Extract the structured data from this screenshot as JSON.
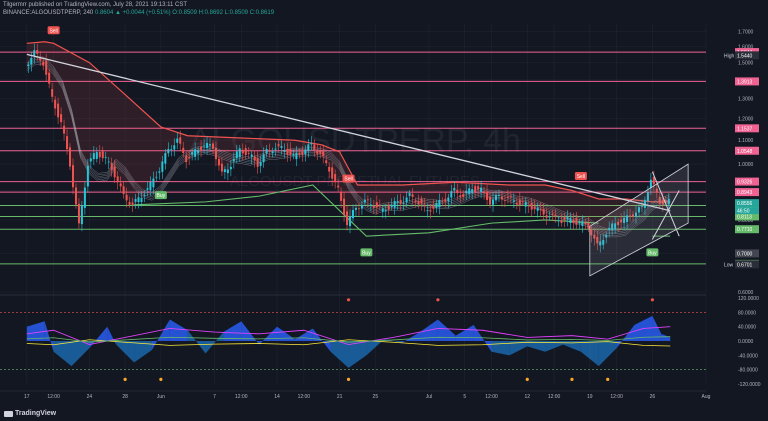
{
  "header": {
    "line1": "Tilgermrr published on TradingView.com, July 28, 2021 19:13:11 CST",
    "symbol": "BINANCE:ALGOUSDTPERP, 240",
    "change": "0.8604 ▲ +0.0044 (+0.51%)",
    "ohlc": "O:0.8509 H:0.8692 L:0.8509 C:0.8619"
  },
  "watermark": {
    "symbol": "ALGOUSDTPERP, 4h",
    "description": "ALGOUSDT PERPETUAL FUTURES"
  },
  "brand": "TradingView",
  "colors": {
    "background": "#131722",
    "up": "#26c6da",
    "down": "#ef5350",
    "resistance": "#f06292",
    "support": "#66bb6a",
    "trendline": "#d1d4dc",
    "supertrend": "#ef5350",
    "ribbon": "#b2b5be"
  },
  "chart_data": [
    {
      "type": "line",
      "panel": "price",
      "y_scale": "log",
      "ylim": [
        0.6,
        1.75
      ],
      "y_ticks": [
        "1.7000",
        "1.6000",
        "1.5000",
        "1.4000",
        "1.3000",
        "1.2000",
        "1.1000",
        "1.0000",
        "0.9000",
        "0.8000",
        "0.7000",
        "0.6000"
      ],
      "x_ticks": [
        "17",
        "12:00",
        "24",
        "28",
        "Jun",
        "7",
        "12:00",
        "14",
        "12:00",
        "21",
        "25",
        "Jul",
        "5",
        "12:00",
        "12",
        "12:00",
        "19",
        "12:00",
        "26",
        "Aug"
      ],
      "price_path": [
        {
          "d": "2021-05-17",
          "v": 1.48
        },
        {
          "d": "2021-05-18",
          "v": 1.56
        },
        {
          "d": "2021-05-19",
          "v": 1.5
        },
        {
          "d": "2021-05-20",
          "v": 1.3
        },
        {
          "d": "2021-05-21",
          "v": 1.18
        },
        {
          "d": "2021-05-22",
          "v": 1.0
        },
        {
          "d": "2021-05-23",
          "v": 0.78
        },
        {
          "d": "2021-05-24",
          "v": 1.0
        },
        {
          "d": "2021-05-25",
          "v": 1.05
        },
        {
          "d": "2021-05-26",
          "v": 1.02
        },
        {
          "d": "2021-05-27",
          "v": 0.96
        },
        {
          "d": "2021-05-28",
          "v": 0.88
        },
        {
          "d": "2021-05-29",
          "v": 0.85
        },
        {
          "d": "2021-05-30",
          "v": 0.88
        },
        {
          "d": "2021-05-31",
          "v": 0.92
        },
        {
          "d": "2021-06-01",
          "v": 0.98
        },
        {
          "d": "2021-06-02",
          "v": 1.06
        },
        {
          "d": "2021-06-03",
          "v": 1.1
        },
        {
          "d": "2021-06-04",
          "v": 1.02
        },
        {
          "d": "2021-06-05",
          "v": 1.05
        },
        {
          "d": "2021-06-06",
          "v": 1.08
        },
        {
          "d": "2021-06-07",
          "v": 1.07
        },
        {
          "d": "2021-06-08",
          "v": 0.96
        },
        {
          "d": "2021-06-09",
          "v": 1.0
        },
        {
          "d": "2021-06-10",
          "v": 1.06
        },
        {
          "d": "2021-06-11",
          "v": 1.04
        },
        {
          "d": "2021-06-12",
          "v": 1.0
        },
        {
          "d": "2021-06-13",
          "v": 1.05
        },
        {
          "d": "2021-06-14",
          "v": 1.07
        },
        {
          "d": "2021-06-15",
          "v": 1.06
        },
        {
          "d": "2021-06-16",
          "v": 1.03
        },
        {
          "d": "2021-06-17",
          "v": 1.05
        },
        {
          "d": "2021-06-18",
          "v": 1.08
        },
        {
          "d": "2021-06-19",
          "v": 1.04
        },
        {
          "d": "2021-06-20",
          "v": 0.98
        },
        {
          "d": "2021-06-21",
          "v": 0.9
        },
        {
          "d": "2021-06-22",
          "v": 0.79
        },
        {
          "d": "2021-06-23",
          "v": 0.84
        },
        {
          "d": "2021-06-24",
          "v": 0.86
        },
        {
          "d": "2021-06-25",
          "v": 0.85
        },
        {
          "d": "2021-06-26",
          "v": 0.83
        },
        {
          "d": "2021-06-27",
          "v": 0.85
        },
        {
          "d": "2021-06-28",
          "v": 0.86
        },
        {
          "d": "2021-06-29",
          "v": 0.88
        },
        {
          "d": "2021-06-30",
          "v": 0.86
        },
        {
          "d": "2021-07-01",
          "v": 0.83
        },
        {
          "d": "2021-07-02",
          "v": 0.85
        },
        {
          "d": "2021-07-03",
          "v": 0.87
        },
        {
          "d": "2021-07-04",
          "v": 0.9
        },
        {
          "d": "2021-07-05",
          "v": 0.88
        },
        {
          "d": "2021-07-06",
          "v": 0.91
        },
        {
          "d": "2021-07-07",
          "v": 0.9
        },
        {
          "d": "2021-07-08",
          "v": 0.86
        },
        {
          "d": "2021-07-09",
          "v": 0.88
        },
        {
          "d": "2021-07-10",
          "v": 0.87
        },
        {
          "d": "2021-07-11",
          "v": 0.86
        },
        {
          "d": "2021-07-12",
          "v": 0.85
        },
        {
          "d": "2021-07-13",
          "v": 0.84
        },
        {
          "d": "2021-07-14",
          "v": 0.82
        },
        {
          "d": "2021-07-15",
          "v": 0.81
        },
        {
          "d": "2021-07-16",
          "v": 0.8
        },
        {
          "d": "2021-07-17",
          "v": 0.8
        },
        {
          "d": "2021-07-18",
          "v": 0.79
        },
        {
          "d": "2021-07-19",
          "v": 0.78
        },
        {
          "d": "2021-07-20",
          "v": 0.72
        },
        {
          "d": "2021-07-21",
          "v": 0.76
        },
        {
          "d": "2021-07-22",
          "v": 0.79
        },
        {
          "d": "2021-07-23",
          "v": 0.8
        },
        {
          "d": "2021-07-24",
          "v": 0.82
        },
        {
          "d": "2021-07-25",
          "v": 0.84
        },
        {
          "d": "2021-07-26",
          "v": 0.94
        },
        {
          "d": "2021-07-27",
          "v": 0.86
        },
        {
          "d": "2021-07-28",
          "v": 0.86
        }
      ],
      "supertrend": [
        {
          "d": "2021-05-17",
          "v": 1.62
        },
        {
          "d": "2021-05-19",
          "v": 1.63
        },
        {
          "d": "2021-05-20",
          "v": 1.62
        },
        {
          "d": "2021-05-24",
          "v": 1.5
        },
        {
          "d": "2021-05-28",
          "v": 1.32
        },
        {
          "d": "2021-06-01",
          "v": 1.16
        },
        {
          "d": "2021-06-04",
          "v": 1.12
        },
        {
          "d": "2021-06-10",
          "v": 1.11
        },
        {
          "d": "2021-06-16",
          "v": 1.1
        },
        {
          "d": "2021-06-19",
          "v": 1.08
        },
        {
          "d": "2021-06-21",
          "v": 1.05
        },
        {
          "d": "2021-06-23",
          "v": 0.92
        },
        {
          "d": "2021-06-28",
          "v": 0.92
        },
        {
          "d": "2021-07-04",
          "v": 0.93
        },
        {
          "d": "2021-07-10",
          "v": 0.92
        },
        {
          "d": "2021-07-14",
          "v": 0.92
        },
        {
          "d": "2021-07-17",
          "v": 0.9
        },
        {
          "d": "2021-07-20",
          "v": 0.87
        },
        {
          "d": "2021-07-23",
          "v": 0.87
        },
        {
          "d": "2021-07-26",
          "v": 0.86
        },
        {
          "d": "2021-07-28",
          "v": 0.86
        }
      ],
      "support_trail": [
        {
          "d": "2021-05-29",
          "v": 0.85
        },
        {
          "d": "2021-06-06",
          "v": 0.86
        },
        {
          "d": "2021-06-12",
          "v": 0.88
        },
        {
          "d": "2021-06-18",
          "v": 0.92
        },
        {
          "d": "2021-06-24",
          "v": 0.75
        },
        {
          "d": "2021-07-01",
          "v": 0.76
        },
        {
          "d": "2021-07-08",
          "v": 0.79
        },
        {
          "d": "2021-07-14",
          "v": 0.8
        },
        {
          "d": "2021-07-20",
          "v": 0.79
        }
      ],
      "support_trail_2": [
        {
          "d": "2021-07-26",
          "v": 0.75
        },
        {
          "d": "2021-07-28",
          "v": 0.75
        }
      ],
      "trendline": [
        {
          "d": "2021-05-17",
          "v": 1.55
        },
        {
          "d": "2021-07-28",
          "v": 0.83
        }
      ],
      "channel": {
        "upper": [
          {
            "d": "2021-07-19",
            "v": 0.78
          },
          {
            "d": "2021-07-30",
            "v": 1.0
          }
        ],
        "lower": [
          {
            "d": "2021-07-19",
            "v": 0.64
          },
          {
            "d": "2021-07-30",
            "v": 0.79
          }
        ]
      },
      "wedge": [
        [
          {
            "d": "2021-07-26",
            "v": 0.97
          },
          {
            "d": "2021-07-29",
            "v": 0.75
          }
        ],
        [
          {
            "d": "2021-07-26",
            "v": 0.74
          },
          {
            "d": "2021-07-29",
            "v": 0.9
          }
        ]
      ],
      "resistance_levels": [
        {
          "v": 1.5644,
          "label": "1.5644"
        },
        {
          "v": 1.3913,
          "label": "1.3913"
        },
        {
          "v": 1.1537,
          "label": "1.1537"
        },
        {
          "v": 1.0548,
          "label": "1.0548"
        },
        {
          "v": 0.9326,
          "label": "0.9326"
        },
        {
          "v": 0.8943,
          "label": "0.8943"
        }
      ],
      "support_levels": [
        {
          "v": 0.8478,
          "label": "0.8478"
        },
        {
          "v": 0.8113,
          "label": "0.8113"
        },
        {
          "v": 0.771,
          "label": "0.7710"
        },
        {
          "v": 0.6713,
          "label": "0.6713"
        }
      ],
      "price_labels": [
        {
          "v": 1.544,
          "label": "1.5440",
          "tag": "High"
        },
        {
          "v": 0.8556,
          "label": "0.8556",
          "sub": "46:50"
        },
        {
          "v": 0.7,
          "label": "0.7000"
        },
        {
          "v": 0.6701,
          "label": "0.6701",
          "tag": "Low"
        }
      ],
      "signals": [
        {
          "d": "2021-05-20",
          "v": 1.7,
          "text": "Sell",
          "kind": "sell"
        },
        {
          "d": "2021-06-01",
          "v": 0.88,
          "text": "Buy",
          "kind": "buy"
        },
        {
          "d": "2021-06-22",
          "v": 0.94,
          "text": "Sell",
          "kind": "sell"
        },
        {
          "d": "2021-06-24",
          "v": 0.7,
          "text": "Buy",
          "kind": "buy"
        },
        {
          "d": "2021-07-18",
          "v": 0.95,
          "text": "Sell",
          "kind": "sell"
        },
        {
          "d": "2021-07-26",
          "v": 0.7,
          "text": "Buy",
          "kind": "buy"
        }
      ]
    },
    {
      "type": "area",
      "panel": "oscillator",
      "ylim": [
        -120,
        120
      ],
      "y_ticks": [
        "120.0000",
        "80.0000",
        "40.0000",
        "0.0000",
        "-40.0000",
        "-80.0000",
        "-120.0000"
      ],
      "wave": [
        {
          "d": "2021-05-17",
          "v": 40
        },
        {
          "d": "2021-05-19",
          "v": 55
        },
        {
          "d": "2021-05-20",
          "v": -30
        },
        {
          "d": "2021-05-22",
          "v": -70
        },
        {
          "d": "2021-05-24",
          "v": -20
        },
        {
          "d": "2021-05-26",
          "v": 40
        },
        {
          "d": "2021-05-27",
          "v": -10
        },
        {
          "d": "2021-05-29",
          "v": -60
        },
        {
          "d": "2021-05-31",
          "v": -25
        },
        {
          "d": "2021-06-02",
          "v": 60
        },
        {
          "d": "2021-06-04",
          "v": 30
        },
        {
          "d": "2021-06-06",
          "v": -35
        },
        {
          "d": "2021-06-08",
          "v": 25
        },
        {
          "d": "2021-06-10",
          "v": 55
        },
        {
          "d": "2021-06-12",
          "v": -10
        },
        {
          "d": "2021-06-14",
          "v": 40
        },
        {
          "d": "2021-06-16",
          "v": 5
        },
        {
          "d": "2021-06-18",
          "v": 35
        },
        {
          "d": "2021-06-20",
          "v": -30
        },
        {
          "d": "2021-06-22",
          "v": -75
        },
        {
          "d": "2021-06-24",
          "v": -40
        },
        {
          "d": "2021-06-26",
          "v": 5
        },
        {
          "d": "2021-06-28",
          "v": -5
        },
        {
          "d": "2021-06-30",
          "v": 25
        },
        {
          "d": "2021-07-02",
          "v": 60
        },
        {
          "d": "2021-07-04",
          "v": 15
        },
        {
          "d": "2021-07-06",
          "v": 45
        },
        {
          "d": "2021-07-08",
          "v": -30
        },
        {
          "d": "2021-07-10",
          "v": -40
        },
        {
          "d": "2021-07-12",
          "v": -15
        },
        {
          "d": "2021-07-14",
          "v": -30
        },
        {
          "d": "2021-07-16",
          "v": -10
        },
        {
          "d": "2021-07-18",
          "v": -30
        },
        {
          "d": "2021-07-20",
          "v": -70
        },
        {
          "d": "2021-07-22",
          "v": -20
        },
        {
          "d": "2021-07-24",
          "v": 45
        },
        {
          "d": "2021-07-26",
          "v": 70
        },
        {
          "d": "2021-07-27",
          "v": 20
        },
        {
          "d": "2021-07-28",
          "v": 10
        }
      ],
      "signal_line": [
        {
          "d": "2021-05-17",
          "v": 20
        },
        {
          "d": "2021-05-20",
          "v": 30
        },
        {
          "d": "2021-05-24",
          "v": -10
        },
        {
          "d": "2021-05-28",
          "v": 10
        },
        {
          "d": "2021-06-02",
          "v": 35
        },
        {
          "d": "2021-06-07",
          "v": 25
        },
        {
          "d": "2021-06-12",
          "v": 20
        },
        {
          "d": "2021-06-17",
          "v": 30
        },
        {
          "d": "2021-06-22",
          "v": -10
        },
        {
          "d": "2021-06-27",
          "v": 10
        },
        {
          "d": "2021-07-02",
          "v": 35
        },
        {
          "d": "2021-07-07",
          "v": 30
        },
        {
          "d": "2021-07-12",
          "v": 10
        },
        {
          "d": "2021-07-17",
          "v": 15
        },
        {
          "d": "2021-07-21",
          "v": 5
        },
        {
          "d": "2021-07-25",
          "v": 35
        },
        {
          "d": "2021-07-28",
          "v": 40
        }
      ],
      "markers": [
        {
          "d": "2021-05-28",
          "v": -107
        },
        {
          "d": "2021-06-01",
          "v": -107
        },
        {
          "d": "2021-06-22",
          "v": -107
        },
        {
          "d": "2021-07-12",
          "v": -107
        },
        {
          "d": "2021-07-17",
          "v": -107
        },
        {
          "d": "2021-07-21",
          "v": -107
        },
        {
          "d": "2021-06-22",
          "v": 115
        },
        {
          "d": "2021-07-02",
          "v": 115
        },
        {
          "d": "2021-07-26",
          "v": 115
        }
      ]
    }
  ]
}
